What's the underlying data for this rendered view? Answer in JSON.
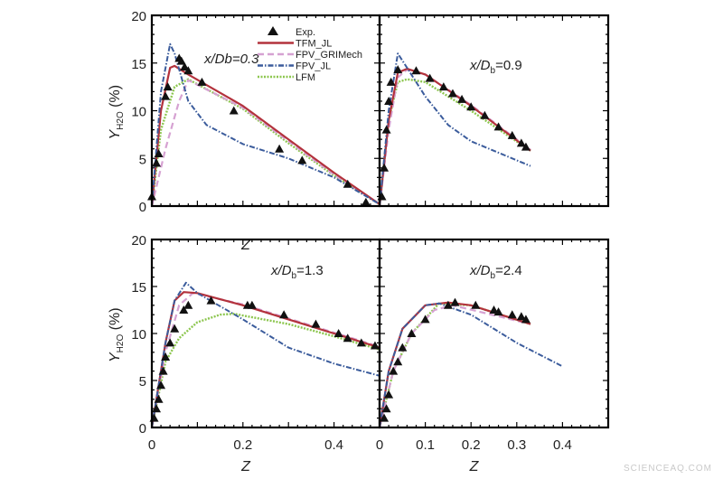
{
  "chart_data": [
    {
      "type": "line",
      "annotation": "x/Db=0.3",
      "annotation_parts": {
        "pre": "x/",
        "D": "D",
        "sub": "b",
        "post": "=0.3"
      },
      "xlim": [
        0,
        0.5
      ],
      "ylim": [
        0,
        20
      ],
      "x_ticks": [
        "",
        "",
        ""
      ],
      "y_ticks": [
        "0",
        "5",
        "10",
        "15",
        "20"
      ],
      "series": [
        {
          "name": "Exp.",
          "kind": "scatter",
          "points": [
            [
              0,
              1
            ],
            [
              0.01,
              4.5
            ],
            [
              0.015,
              5.5
            ],
            [
              0.03,
              11.5
            ],
            [
              0.035,
              12.5
            ],
            [
              0.06,
              15.5
            ],
            [
              0.065,
              15.2
            ],
            [
              0.072,
              14.6
            ],
            [
              0.08,
              14.2
            ],
            [
              0.11,
              13
            ],
            [
              0.18,
              10
            ],
            [
              0.28,
              6
            ],
            [
              0.33,
              4.8
            ],
            [
              0.43,
              2.3
            ],
            [
              0.47,
              0.4
            ]
          ]
        },
        {
          "name": "TFM_JL",
          "points": [
            [
              0,
              0
            ],
            [
              0.02,
              10
            ],
            [
              0.04,
              14.5
            ],
            [
              0.05,
              14.7
            ],
            [
              0.08,
              13.8
            ],
            [
              0.2,
              10.5
            ],
            [
              0.3,
              7
            ],
            [
              0.4,
              3.5
            ],
            [
              0.5,
              0.2
            ]
          ]
        },
        {
          "name": "FPV_GRIMech",
          "points": [
            [
              0,
              0
            ],
            [
              0.03,
              6
            ],
            [
              0.06,
              11
            ],
            [
              0.08,
              13.2
            ],
            [
              0.2,
              10.3
            ],
            [
              0.3,
              6.8
            ],
            [
              0.4,
              3.3
            ],
            [
              0.5,
              0.2
            ]
          ]
        },
        {
          "name": "FPV_JL",
          "points": [
            [
              0,
              0
            ],
            [
              0.02,
              12
            ],
            [
              0.04,
              17
            ],
            [
              0.05,
              16
            ],
            [
              0.08,
              11
            ],
            [
              0.12,
              8.5
            ],
            [
              0.2,
              6.5
            ],
            [
              0.3,
              5
            ],
            [
              0.4,
              3
            ],
            [
              0.5,
              0.2
            ]
          ]
        },
        {
          "name": "LFM",
          "points": [
            [
              0,
              0
            ],
            [
              0.02,
              8
            ],
            [
              0.05,
              12.5
            ],
            [
              0.08,
              13.3
            ],
            [
              0.2,
              10.2
            ],
            [
              0.3,
              6.6
            ],
            [
              0.4,
              3.2
            ],
            [
              0.5,
              0.2
            ]
          ]
        }
      ]
    },
    {
      "type": "line",
      "annotation_parts": {
        "pre": "x/",
        "D": "D",
        "sub": "b",
        "post": "=0.9"
      },
      "xlim": [
        0,
        0.5
      ],
      "ylim": [
        0,
        20
      ],
      "series": [
        {
          "name": "Exp.",
          "kind": "scatter",
          "points": [
            [
              0.005,
              1
            ],
            [
              0.01,
              4
            ],
            [
              0.015,
              8
            ],
            [
              0.02,
              11
            ],
            [
              0.025,
              13
            ],
            [
              0.04,
              14.3
            ],
            [
              0.08,
              14.2
            ],
            [
              0.11,
              13.4
            ],
            [
              0.14,
              12.5
            ],
            [
              0.16,
              11.8
            ],
            [
              0.18,
              11.2
            ],
            [
              0.2,
              10.4
            ],
            [
              0.23,
              9.5
            ],
            [
              0.26,
              8.3
            ],
            [
              0.29,
              7.4
            ],
            [
              0.31,
              6.6
            ],
            [
              0.32,
              6.2
            ]
          ]
        },
        {
          "name": "TFM_JL",
          "points": [
            [
              0,
              0
            ],
            [
              0.02,
              9
            ],
            [
              0.04,
              14
            ],
            [
              0.06,
              14.4
            ],
            [
              0.1,
              13.8
            ],
            [
              0.2,
              10.5
            ],
            [
              0.33,
              5.8
            ]
          ]
        },
        {
          "name": "FPV_GRIMech",
          "points": [
            [
              0,
              0
            ],
            [
              0.02,
              8
            ],
            [
              0.04,
              13.5
            ],
            [
              0.06,
              14.3
            ],
            [
              0.1,
              13.8
            ],
            [
              0.2,
              10.6
            ],
            [
              0.33,
              5.9
            ]
          ]
        },
        {
          "name": "FPV_JL",
          "points": [
            [
              0,
              0
            ],
            [
              0.02,
              10
            ],
            [
              0.04,
              16
            ],
            [
              0.06,
              14.5
            ],
            [
              0.1,
              11.5
            ],
            [
              0.15,
              8.5
            ],
            [
              0.2,
              6.8
            ],
            [
              0.33,
              4.2
            ]
          ]
        },
        {
          "name": "LFM",
          "points": [
            [
              0,
              0
            ],
            [
              0.02,
              9
            ],
            [
              0.04,
              13
            ],
            [
              0.06,
              13.3
            ],
            [
              0.1,
              13
            ],
            [
              0.2,
              10
            ],
            [
              0.33,
              5.8
            ]
          ]
        }
      ]
    },
    {
      "type": "line",
      "annotation_parts": {
        "pre": "x/",
        "D": "D",
        "sub": "b",
        "post": "=1.3"
      },
      "xlim": [
        0,
        0.5
      ],
      "ylim": [
        0,
        20
      ],
      "x_ticks": [
        "0",
        "0.2",
        "0.4"
      ],
      "y_ticks": [
        "0",
        "5",
        "10",
        "15",
        "20"
      ],
      "series": [
        {
          "name": "Exp.",
          "kind": "scatter",
          "points": [
            [
              0.005,
              1
            ],
            [
              0.01,
              2
            ],
            [
              0.015,
              3
            ],
            [
              0.02,
              4.5
            ],
            [
              0.025,
              6
            ],
            [
              0.03,
              7.5
            ],
            [
              0.04,
              9
            ],
            [
              0.05,
              10.5
            ],
            [
              0.07,
              12.5
            ],
            [
              0.08,
              13
            ],
            [
              0.13,
              13.5
            ],
            [
              0.21,
              13
            ],
            [
              0.22,
              13
            ],
            [
              0.29,
              12
            ],
            [
              0.36,
              11
            ],
            [
              0.41,
              10
            ],
            [
              0.43,
              9.5
            ],
            [
              0.46,
              9
            ],
            [
              0.49,
              8.7
            ]
          ]
        },
        {
          "name": "TFM_JL",
          "points": [
            [
              0,
              0
            ],
            [
              0.03,
              9
            ],
            [
              0.05,
              13.5
            ],
            [
              0.07,
              14.4
            ],
            [
              0.1,
              14.3
            ],
            [
              0.2,
              13
            ],
            [
              0.3,
              11.5
            ],
            [
              0.4,
              10
            ],
            [
              0.5,
              8.5
            ]
          ]
        },
        {
          "name": "FPV_GRIMech",
          "points": [
            [
              0,
              0
            ],
            [
              0.03,
              8
            ],
            [
              0.06,
              13
            ],
            [
              0.09,
              14.3
            ],
            [
              0.2,
              13.1
            ],
            [
              0.3,
              11.6
            ],
            [
              0.4,
              10.1
            ],
            [
              0.5,
              8.6
            ]
          ]
        },
        {
          "name": "FPV_JL",
          "points": [
            [
              0,
              0
            ],
            [
              0.03,
              9
            ],
            [
              0.05,
              13.5
            ],
            [
              0.075,
              15.4
            ],
            [
              0.1,
              14.3
            ],
            [
              0.2,
              11.5
            ],
            [
              0.3,
              8.5
            ],
            [
              0.4,
              6.8
            ],
            [
              0.5,
              5.5
            ]
          ]
        },
        {
          "name": "LFM",
          "points": [
            [
              0,
              0
            ],
            [
              0.03,
              7
            ],
            [
              0.06,
              9.5
            ],
            [
              0.1,
              11.2
            ],
            [
              0.15,
              12
            ],
            [
              0.18,
              12.1
            ],
            [
              0.3,
              11
            ],
            [
              0.4,
              9.7
            ],
            [
              0.5,
              8.3
            ]
          ]
        }
      ]
    },
    {
      "type": "line",
      "annotation_parts": {
        "pre": "x/",
        "D": "D",
        "sub": "b",
        "post": "=2.4"
      },
      "xlim": [
        0,
        0.5
      ],
      "ylim": [
        0,
        20
      ],
      "x_ticks": [
        "0",
        "0.1",
        "0.2",
        "0.3",
        "0.4"
      ],
      "series": [
        {
          "name": "Exp.",
          "kind": "scatter",
          "points": [
            [
              0.01,
              1
            ],
            [
              0.015,
              2
            ],
            [
              0.02,
              3.5
            ],
            [
              0.03,
              6
            ],
            [
              0.04,
              7
            ],
            [
              0.05,
              8.5
            ],
            [
              0.07,
              10
            ],
            [
              0.1,
              11.5
            ],
            [
              0.15,
              13
            ],
            [
              0.165,
              13.3
            ],
            [
              0.21,
              13
            ],
            [
              0.25,
              12.5
            ],
            [
              0.26,
              12.3
            ],
            [
              0.29,
              12
            ],
            [
              0.31,
              11.8
            ],
            [
              0.32,
              11.5
            ]
          ]
        },
        {
          "name": "TFM_JL",
          "points": [
            [
              0,
              0
            ],
            [
              0.02,
              6
            ],
            [
              0.05,
              10.5
            ],
            [
              0.1,
              13
            ],
            [
              0.15,
              13.3
            ],
            [
              0.2,
              13
            ],
            [
              0.33,
              11
            ]
          ]
        },
        {
          "name": "FPV_GRIMech",
          "points": [
            [
              0,
              0
            ],
            [
              0.03,
              6
            ],
            [
              0.07,
              10
            ],
            [
              0.12,
              12.5
            ],
            [
              0.16,
              13
            ],
            [
              0.33,
              11
            ]
          ]
        },
        {
          "name": "FPV_JL",
          "points": [
            [
              0,
              0
            ],
            [
              0.02,
              6
            ],
            [
              0.05,
              10.5
            ],
            [
              0.1,
              13
            ],
            [
              0.13,
              13.2
            ],
            [
              0.2,
              12
            ],
            [
              0.3,
              9
            ],
            [
              0.4,
              6.5
            ]
          ]
        },
        {
          "name": "LFM",
          "points": [
            [
              0,
              0
            ],
            [
              0.03,
              6
            ],
            [
              0.07,
              10
            ],
            [
              0.13,
              13.2
            ],
            [
              0.2,
              13
            ],
            [
              0.33,
              11
            ]
          ]
        }
      ]
    }
  ],
  "axes": {
    "ylabel": {
      "main": "Y",
      "sub": "H2O",
      "unit": " (%)"
    },
    "xlabel": "Z"
  },
  "legend": {
    "placement": "top-right of first panel",
    "entries": [
      "Exp.",
      "TFM_JL",
      "FPV_GRIMech",
      "FPV_JL",
      "LFM"
    ]
  },
  "colors": {
    "Exp.": "#111111",
    "TFM_JL": "#b3323c",
    "FPV_GRIMech": "#d6a2d2",
    "FPV_JL": "#3b5c9c",
    "LFM": "#8cc64e"
  },
  "watermark": "SCIENCEAQ.COM"
}
